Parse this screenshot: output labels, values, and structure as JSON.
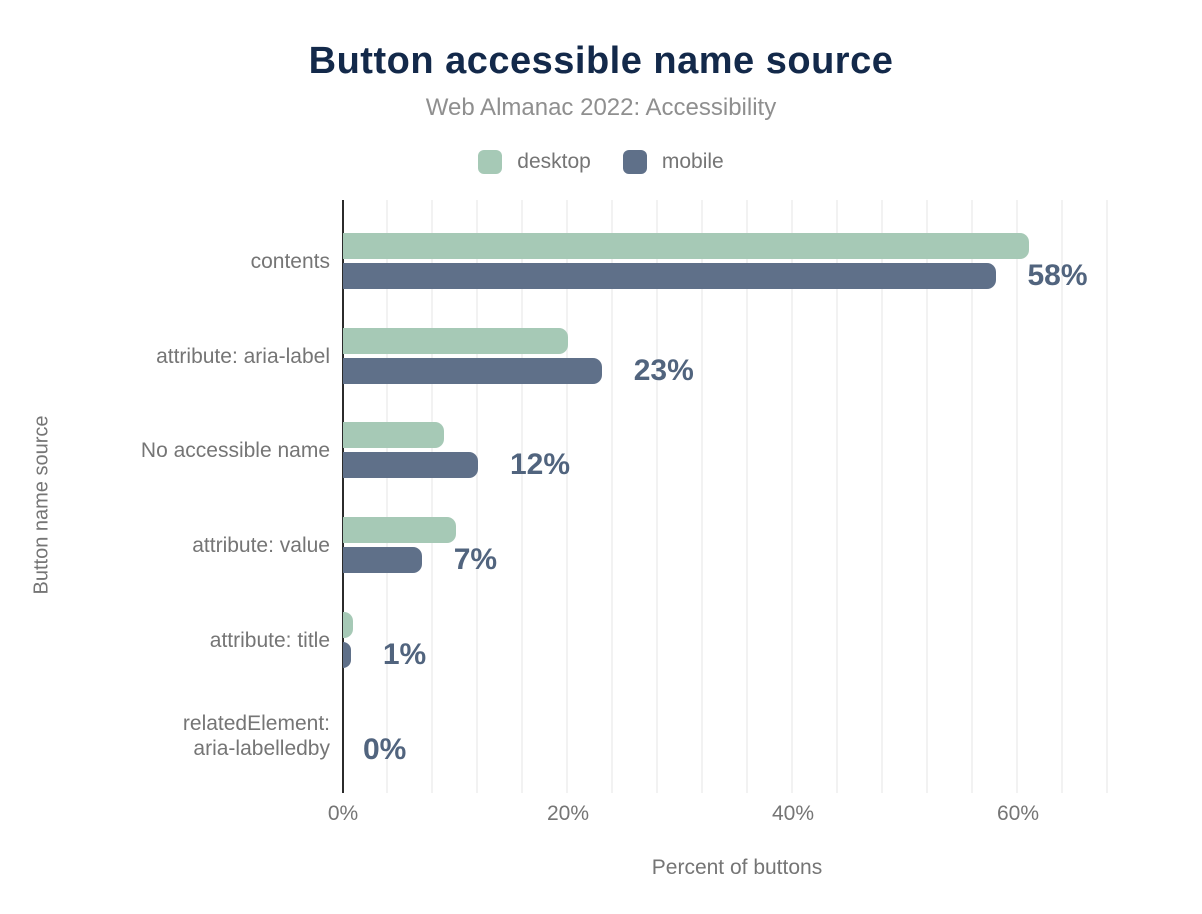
{
  "header": {
    "title": "Button accessible name source",
    "subtitle": "Web Almanac 2022: Accessibility"
  },
  "legend": {
    "items": [
      {
        "label": "desktop",
        "color": "#a6c9b6"
      },
      {
        "label": "mobile",
        "color": "#5f7089"
      }
    ]
  },
  "colors": {
    "title": "#13294a",
    "subtitle": "#8f8f8f",
    "text_gray": "#757575",
    "data_label": "#51647e",
    "axis_line": "#2b2b2b",
    "gridline": "#f2f2f2",
    "desktop_bar": "#a6c9b6",
    "mobile_bar": "#5f7089"
  },
  "chart_data": {
    "type": "bar",
    "orientation": "horizontal",
    "title": "Button accessible name source",
    "subtitle": "Web Almanac 2022: Accessibility",
    "categories": [
      "contents",
      "attribute: aria-label",
      "No accessible name",
      "attribute: value",
      "attribute: title",
      "relatedElement:\naria-labelledby"
    ],
    "series": [
      {
        "name": "desktop",
        "values": [
          61,
          20,
          9,
          10,
          0.9,
          0
        ]
      },
      {
        "name": "mobile",
        "values": [
          58,
          23,
          12,
          7,
          0.7,
          0
        ]
      }
    ],
    "data_labels": [
      "58%",
      "23%",
      "12%",
      "7%",
      "1%",
      "0%"
    ],
    "xlabel": "Percent of buttons",
    "ylabel": "Button name source",
    "x_ticks": [
      {
        "label": "0%",
        "value": 0
      },
      {
        "label": "20%",
        "value": 20
      },
      {
        "label": "40%",
        "value": 40
      },
      {
        "label": "60%",
        "value": 60
      }
    ],
    "xlim": [
      0,
      70
    ],
    "grid": {
      "minor_step_percent": 4,
      "visible": true
    },
    "legend_position": "top"
  }
}
